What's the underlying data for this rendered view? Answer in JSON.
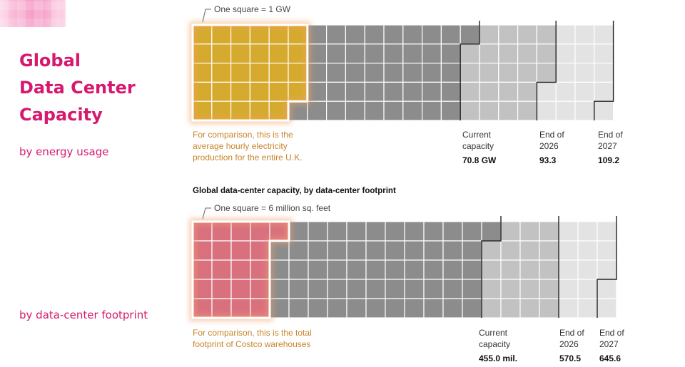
{
  "sidebar": {
    "title_lines": [
      "Global",
      "Data Center",
      "Capacity"
    ],
    "subtitle_energy": "by energy usage",
    "subtitle_footprint": "by data-center footprint"
  },
  "colors": {
    "accent": "#d6186f",
    "energy_highlight": "#d5aa2e",
    "footprint_highlight": "#d9707e",
    "current": "#8c8c8c",
    "end_2026": "#c2c2c2",
    "end_2027": "#e3e3e3",
    "annotation": "#c7842a"
  },
  "chart_data": [
    {
      "type": "waffle",
      "unit_note": "One square = 1 GW",
      "comparison_note": [
        "For comparison, this is the",
        "average hourly electricity",
        "production for the entire U.K."
      ],
      "milestones": [
        {
          "label": [
            "Current",
            "capacity"
          ],
          "value_text": "70.8 GW",
          "value": 70.8
        },
        {
          "label": [
            "End of",
            "2026"
          ],
          "value_text": "93.3",
          "value": 93.3
        },
        {
          "label": [
            "End of",
            "2027"
          ],
          "value_text": "109.2",
          "value": 109.2
        }
      ],
      "comparison_squares": 29
    },
    {
      "type": "waffle",
      "title": "Global data-center capacity, by data-center footprint",
      "unit_note": "One square = 6 million sq. feet",
      "comparison_note": [
        "For comparison, this is the total",
        "footprint of Costco warehouses"
      ],
      "milestones": [
        {
          "label": [
            "Current",
            "capacity"
          ],
          "value_text": "455.0 mil.",
          "value": 455.0
        },
        {
          "label": [
            "End of",
            "2026"
          ],
          "value_text": "570.5",
          "value": 570.5
        },
        {
          "label": [
            "End of",
            "2027"
          ],
          "value_text": "645.6",
          "value": 645.6
        }
      ],
      "comparison_squares": 21
    }
  ]
}
